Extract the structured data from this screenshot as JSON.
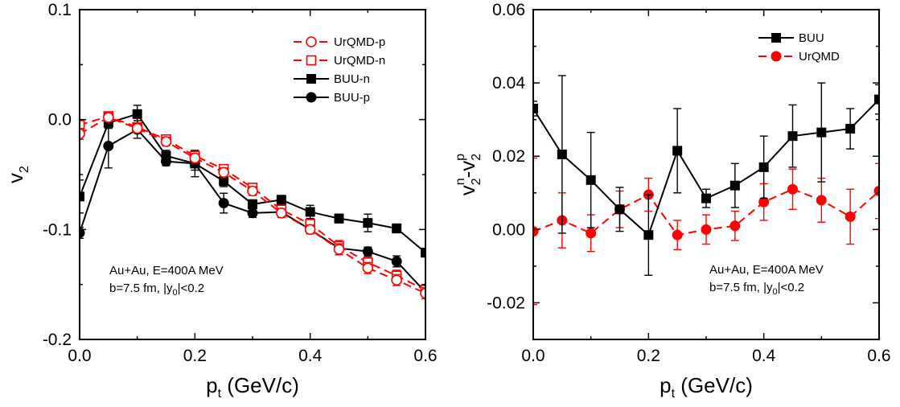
{
  "colors": {
    "black": "#000000",
    "red": "#ff0000"
  },
  "chart_data": [
    {
      "type": "line",
      "title": "",
      "xlabel": {
        "main": "p",
        "sub": "t",
        "unit": " (GeV/c)"
      },
      "ylabel": {
        "main": "v",
        "sub": "2"
      },
      "xlim": [
        0.0,
        0.6
      ],
      "ylim": [
        -0.2,
        0.1
      ],
      "xticks": [
        0.0,
        0.2,
        0.4,
        0.6
      ],
      "xtick_labels": [
        "0.0",
        "0.2",
        "0.4",
        "0.6"
      ],
      "yticks": [
        0.1,
        0.0,
        -0.1,
        -0.2
      ],
      "ytick_labels": [
        "0.1",
        "0.0",
        "-0.1",
        "-0.2"
      ],
      "grid": false,
      "legend_position": "top-right",
      "annotation": {
        "line1": "Au+Au, E=400A MeV",
        "line2_pre": "b=7.5 fm, |y",
        "line2_sub": "0",
        "line2_post": "|<0.2"
      },
      "series": [
        {
          "name": "UrQMD-p",
          "color": "#ff0000",
          "marker": "open-circle",
          "dashed": true,
          "x": [
            0.0,
            0.05,
            0.1,
            0.15,
            0.2,
            0.25,
            0.3,
            0.35,
            0.4,
            0.45,
            0.5,
            0.55,
            0.6
          ],
          "y": [
            -0.013,
            0.002,
            -0.008,
            -0.02,
            -0.035,
            -0.048,
            -0.065,
            -0.085,
            -0.1,
            -0.118,
            -0.135,
            -0.146,
            -0.158
          ],
          "err": [
            0.005,
            0.004,
            0.004,
            0.004,
            0.004,
            0.004,
            0.004,
            0.004,
            0.004,
            0.005,
            0.005,
            0.005,
            0.005
          ]
        },
        {
          "name": "UrQMD-n",
          "color": "#ff0000",
          "marker": "open-square",
          "dashed": true,
          "x": [
            0.0,
            0.05,
            0.1,
            0.15,
            0.2,
            0.25,
            0.3,
            0.35,
            0.4,
            0.45,
            0.5,
            0.55,
            0.6
          ],
          "y": [
            -0.005,
            0.003,
            -0.007,
            -0.018,
            -0.033,
            -0.045,
            -0.062,
            -0.082,
            -0.095,
            -0.115,
            -0.13,
            -0.142,
            -0.155
          ],
          "err": [
            0.005,
            0.004,
            0.004,
            0.004,
            0.004,
            0.004,
            0.004,
            0.004,
            0.004,
            0.005,
            0.005,
            0.005,
            0.005
          ]
        },
        {
          "name": "BUU-n",
          "color": "#000000",
          "marker": "filled-square",
          "dashed": false,
          "x": [
            0.0,
            0.05,
            0.1,
            0.15,
            0.2,
            0.25,
            0.3,
            0.35,
            0.4,
            0.45,
            0.5,
            0.55,
            0.6
          ],
          "y": [
            -0.07,
            -0.003,
            0.005,
            -0.033,
            -0.04,
            -0.056,
            -0.077,
            -0.073,
            -0.084,
            -0.09,
            -0.094,
            -0.099,
            -0.121
          ],
          "err": [
            0.015,
            0.005,
            0.008,
            0.005,
            0.006,
            0.005,
            0.004,
            0.004,
            0.006,
            0.004,
            0.008,
            0.004,
            0.004
          ]
        },
        {
          "name": "BUU-p",
          "color": "#000000",
          "marker": "filled-circle",
          "dashed": false,
          "x": [
            0.0,
            0.05,
            0.1,
            0.15,
            0.2,
            0.25,
            0.3,
            0.35,
            0.4,
            0.45,
            0.5,
            0.55,
            0.6
          ],
          "y": [
            -0.103,
            -0.024,
            -0.009,
            -0.038,
            -0.04,
            -0.076,
            -0.085,
            -0.084,
            -0.1,
            -0.117,
            -0.12,
            -0.129,
            -0.157
          ],
          "err": [
            0.005,
            0.02,
            0.008,
            0.004,
            0.012,
            0.009,
            0.004,
            0.004,
            0.004,
            0.006,
            0.004,
            0.005,
            0.004
          ]
        }
      ]
    },
    {
      "type": "line",
      "title": "",
      "xlabel": {
        "main": "p",
        "sub": "t",
        "unit": " (GeV/c)"
      },
      "ylabel": {
        "text": "v2n-v2p",
        "parts": [
          "v",
          "2",
          "n",
          "-v",
          "2",
          "p"
        ]
      },
      "xlim": [
        0.0,
        0.6
      ],
      "ylim": [
        -0.03,
        0.06
      ],
      "xticks": [
        0.0,
        0.2,
        0.4,
        0.6
      ],
      "xtick_labels": [
        "0.0",
        "0.2",
        "0.4",
        "0.6"
      ],
      "yticks": [
        0.06,
        0.04,
        0.02,
        0.0,
        -0.02
      ],
      "ytick_labels": [
        "0.06",
        "0.04",
        "0.02",
        "0.00",
        "-0.02"
      ],
      "grid": false,
      "legend_position": "top-right",
      "annotation": {
        "line1": "Au+Au, E=400A MeV",
        "line2_pre": "b=7.5 fm, |y",
        "line2_sub": "0",
        "line2_post": "|<0.2"
      },
      "series": [
        {
          "name": "BUU",
          "color": "#000000",
          "marker": "filled-square",
          "dashed": false,
          "x": [
            0.0,
            0.05,
            0.1,
            0.15,
            0.2,
            0.25,
            0.3,
            0.35,
            0.4,
            0.45,
            0.5,
            0.55,
            0.6
          ],
          "y": [
            0.033,
            0.0205,
            0.0135,
            0.0055,
            -0.0015,
            0.0215,
            0.0085,
            0.012,
            0.017,
            0.0255,
            0.0265,
            0.0275,
            0.0355
          ],
          "err": [
            0.002,
            0.0215,
            0.013,
            0.006,
            0.011,
            0.0115,
            0.0025,
            0.006,
            0.0085,
            0.0085,
            0.0135,
            0.0055,
            0.004
          ]
        },
        {
          "name": "UrQMD",
          "color": "#ff0000",
          "marker": "filled-circle",
          "dashed": true,
          "x": [
            0.0,
            0.05,
            0.1,
            0.15,
            0.2,
            0.25,
            0.3,
            0.35,
            0.4,
            0.45,
            0.5,
            0.55,
            0.6
          ],
          "y": [
            -0.0005,
            0.0025,
            -0.001,
            0.0055,
            0.0095,
            -0.0015,
            0.0,
            0.001,
            0.0075,
            0.011,
            0.008,
            0.0035,
            0.0105
          ],
          "err": [
            0.02,
            0.0075,
            0.005,
            0.005,
            0.0045,
            0.004,
            0.004,
            0.004,
            0.005,
            0.0055,
            0.006,
            0.0075,
            0.0075
          ]
        }
      ]
    }
  ]
}
